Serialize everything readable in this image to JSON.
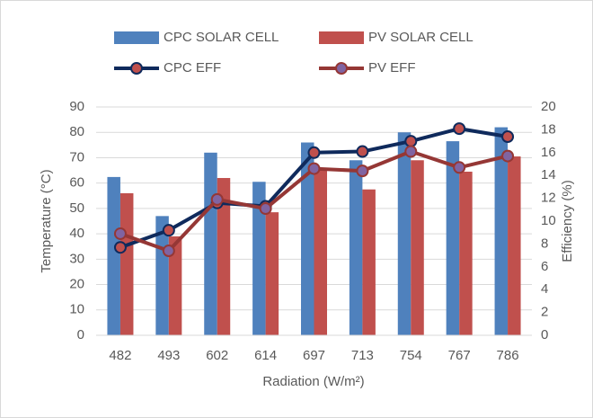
{
  "chart_data": {
    "type": "bar",
    "categories": [
      "482",
      "493",
      "602",
      "614",
      "697",
      "713",
      "754",
      "767",
      "786"
    ],
    "series": [
      {
        "name": "CPC SOLAR CELL",
        "type": "bar",
        "color": "#4f81bd",
        "values": [
          62.4,
          47,
          72,
          60.5,
          76,
          69,
          80,
          76.5,
          82
        ]
      },
      {
        "name": "PV SOLAR CELL",
        "type": "bar",
        "color": "#c0504d",
        "values": [
          56,
          39,
          62,
          48.5,
          66,
          57.5,
          69,
          64.5,
          70.5
        ]
      },
      {
        "name": "CPC EFF",
        "type": "line",
        "axis": "y2",
        "color": "#0f2a5c",
        "marker_color": "#c0504d",
        "values": [
          7.7,
          9.2,
          11.6,
          11.3,
          16.0,
          16.1,
          17.0,
          18.1,
          17.4
        ]
      },
      {
        "name": "PV EFF",
        "type": "line",
        "axis": "y2",
        "color": "#953735",
        "marker_color": "#8064a2",
        "values": [
          8.9,
          7.4,
          11.9,
          11.1,
          14.6,
          14.4,
          16.1,
          14.7,
          15.7
        ]
      }
    ],
    "xlabel": "Radiation (W/m²)",
    "ylabel": "Temperature (°C)",
    "y2label": "Efficiency (%)",
    "ylim": [
      0,
      90
    ],
    "yticks": [
      0,
      10,
      20,
      30,
      40,
      50,
      60,
      70,
      80,
      90
    ],
    "y2lim": [
      0,
      20
    ],
    "y2ticks": [
      0,
      2,
      4,
      6,
      8,
      10,
      12,
      14,
      16,
      18,
      20
    ],
    "grid": true,
    "legend": "top"
  }
}
